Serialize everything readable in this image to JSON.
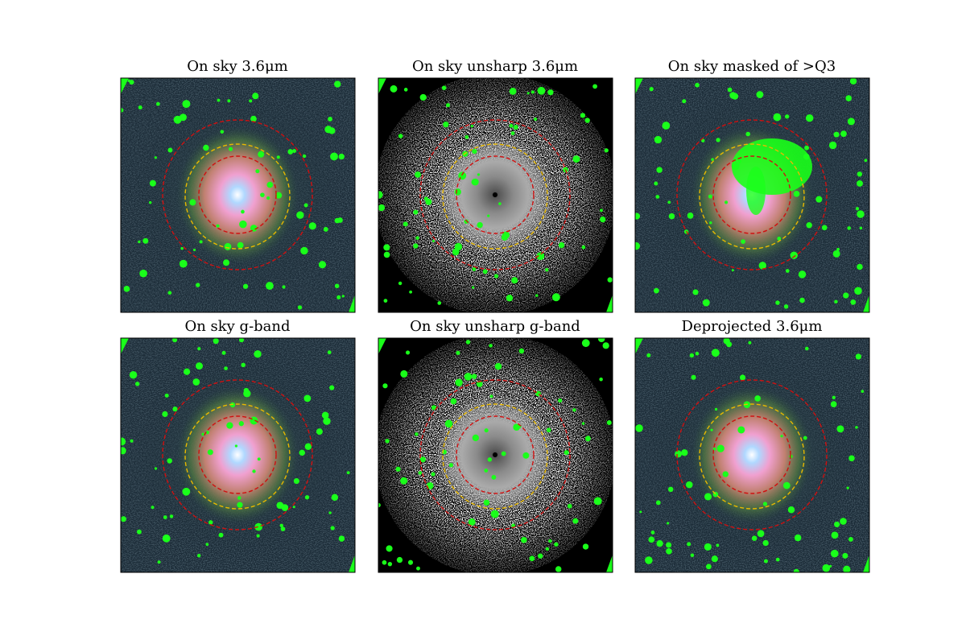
{
  "panels": [
    {
      "title": "On sky 3.6μm"
    },
    {
      "title": "On sky unsharp 3.6μm"
    },
    {
      "title": "On sky masked of >Q3"
    },
    {
      "title": "On sky g-band"
    },
    {
      "title": "On sky unsharp g-band"
    },
    {
      "title": "Deprojected 3.6μm"
    }
  ]
}
